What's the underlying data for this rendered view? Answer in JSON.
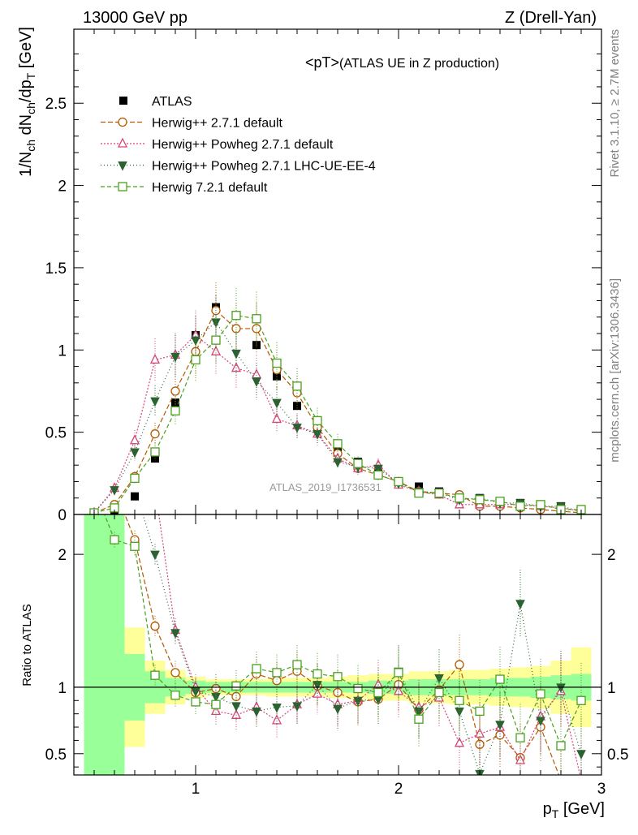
{
  "header": {
    "left": "13000 GeV pp",
    "right": "Z (Drell-Yan)"
  },
  "side_text": {
    "rivet": "Rivet 3.1.10, ≥ 2.7M events",
    "mcplots": "mcplots.cern.ch [arXiv:1306.3436]"
  },
  "chart_data": {
    "type": "scatter",
    "title_main": "<pT>",
    "title_sub": " (ATLAS UE in Z production)",
    "watermark": "ATLAS_2019_I1736531",
    "ylabel_main": "1/N_ch dN_ch/dp_T [GeV]",
    "ylabel_ratio": "Ratio to ATLAS",
    "xlabel": "p_T [GeV]",
    "xlim": [
      0.4,
      3.0
    ],
    "ylim_main": [
      0,
      2.95
    ],
    "ylim_ratio": [
      0.34,
      2.3
    ],
    "x_ticks": [
      "1",
      "2",
      "3"
    ],
    "y_ticks_main": [
      "0",
      "0.5",
      "1",
      "1.5",
      "2",
      "2.5"
    ],
    "y_ticks_ratio": [
      "0.5",
      "1",
      "2"
    ],
    "legend_position": "top-left",
    "x": [
      0.5,
      0.6,
      0.7,
      0.8,
      0.9,
      1.0,
      1.1,
      1.2,
      1.3,
      1.4,
      1.5,
      1.6,
      1.7,
      1.8,
      1.9,
      2.0,
      2.1,
      2.2,
      2.3,
      2.4,
      2.5,
      2.6,
      2.7,
      2.8,
      2.9
    ],
    "band_edges": [
      0.45,
      0.55,
      0.65,
      0.75,
      0.85,
      0.95,
      1.05,
      1.15,
      1.25,
      1.35,
      1.45,
      1.55,
      1.65,
      1.75,
      1.85,
      1.95,
      2.05,
      2.15,
      2.25,
      2.35,
      2.45,
      2.55,
      2.65,
      2.75,
      2.85,
      2.95
    ],
    "band_green": [
      [
        0.3,
        2.5
      ],
      [
        0.3,
        2.5
      ],
      [
        0.75,
        1.25
      ],
      [
        0.88,
        1.12
      ],
      [
        0.93,
        1.07
      ],
      [
        0.95,
        1.05
      ],
      [
        0.96,
        1.04
      ],
      [
        0.96,
        1.04
      ],
      [
        0.96,
        1.04
      ],
      [
        0.96,
        1.04
      ],
      [
        0.96,
        1.04
      ],
      [
        0.96,
        1.04
      ],
      [
        0.96,
        1.04
      ],
      [
        0.96,
        1.04
      ],
      [
        0.95,
        1.05
      ],
      [
        0.95,
        1.05
      ],
      [
        0.94,
        1.06
      ],
      [
        0.94,
        1.06
      ],
      [
        0.94,
        1.06
      ],
      [
        0.94,
        1.06
      ],
      [
        0.93,
        1.07
      ],
      [
        0.93,
        1.07
      ],
      [
        0.92,
        1.08
      ],
      [
        0.91,
        1.09
      ],
      [
        0.9,
        1.1
      ]
    ],
    "band_yellow": [
      [
        0.3,
        2.5
      ],
      [
        0.3,
        2.5
      ],
      [
        0.55,
        1.45
      ],
      [
        0.8,
        1.2
      ],
      [
        0.87,
        1.13
      ],
      [
        0.92,
        1.08
      ],
      [
        0.94,
        1.06
      ],
      [
        0.94,
        1.06
      ],
      [
        0.94,
        1.06
      ],
      [
        0.93,
        1.07
      ],
      [
        0.93,
        1.07
      ],
      [
        0.93,
        1.07
      ],
      [
        0.92,
        1.08
      ],
      [
        0.91,
        1.09
      ],
      [
        0.9,
        1.1
      ],
      [
        0.9,
        1.1
      ],
      [
        0.88,
        1.12
      ],
      [
        0.88,
        1.12
      ],
      [
        0.87,
        1.13
      ],
      [
        0.87,
        1.13
      ],
      [
        0.86,
        1.14
      ],
      [
        0.85,
        1.15
      ],
      [
        0.84,
        1.16
      ],
      [
        0.8,
        1.2
      ],
      [
        0.7,
        1.3
      ]
    ],
    "series": [
      {
        "name": "ATLAS",
        "kind": "data",
        "color": "#000000",
        "values": [
          0.01,
          0.02,
          0.11,
          0.34,
          0.68,
          1.09,
          1.26,
          1.21,
          1.03,
          0.84,
          0.66,
          0.52,
          0.39,
          0.32,
          0.25,
          0.19,
          0.17,
          0.14,
          0.11,
          0.1,
          0.08,
          0.07,
          0.06,
          0.05,
          0.03
        ]
      },
      {
        "name": "Herwig++ 2.7.1 default",
        "kind": "mc",
        "color": "#b35a00",
        "marker": "circle",
        "dash": "6,3",
        "values": [
          0.01,
          0.06,
          0.23,
          0.49,
          0.75,
          0.99,
          1.24,
          1.13,
          1.13,
          0.88,
          0.74,
          0.53,
          0.37,
          0.28,
          0.24,
          0.2,
          0.14,
          0.13,
          0.12,
          0.05,
          0.05,
          0.04,
          0.03,
          0.02,
          0.01
        ],
        "ratio": [
          2.5,
          2.5,
          2.11,
          1.46,
          1.11,
          0.96,
          0.99,
          0.93,
          1.1,
          1.05,
          1.12,
          1.01,
          0.96,
          0.89,
          0.91,
          1.02,
          0.83,
          0.98,
          1.17,
          0.57,
          0.64,
          0.47,
          0.7,
          0.3,
          0.3
        ]
      },
      {
        "name": "Herwig++ Powheg 2.7.1 default",
        "kind": "mc",
        "color": "#d6457a",
        "marker": "triangle-up",
        "dash": "2,2",
        "values": [
          0.01,
          0.16,
          0.45,
          0.94,
          0.97,
          1.09,
          0.99,
          0.89,
          0.85,
          0.58,
          0.54,
          0.49,
          0.34,
          0.28,
          0.3,
          0.18,
          0.14,
          0.12,
          0.06,
          0.06,
          0.06,
          0.06,
          0.05,
          0.04,
          0.02
        ],
        "ratio": [
          2.5,
          2.5,
          2.5,
          2.5,
          1.43,
          1.0,
          0.82,
          0.79,
          0.85,
          0.75,
          0.87,
          0.95,
          0.87,
          0.9,
          1.02,
          0.97,
          0.85,
          0.92,
          0.58,
          0.65,
          0.7,
          0.45,
          0.78,
          0.97,
          0.3
        ]
      },
      {
        "name": "Herwig++ Powheg 2.7.1 LHC-UE-EE-4",
        "kind": "mc",
        "color": "#2a6331",
        "marker": "triangle-down",
        "dash": "1,3",
        "values": [
          0.01,
          0.15,
          0.38,
          0.69,
          0.96,
          1.06,
          1.17,
          0.98,
          0.81,
          0.68,
          0.53,
          0.49,
          0.32,
          0.29,
          0.28,
          0.19,
          0.14,
          0.13,
          0.09,
          0.1,
          0.07,
          0.07,
          0.05,
          0.05,
          0.02
        ],
        "ratio": [
          2.5,
          2.5,
          2.5,
          2.0,
          1.41,
          0.97,
          0.93,
          0.86,
          0.82,
          0.85,
          0.86,
          1.02,
          0.84,
          0.9,
          0.91,
          1.12,
          0.82,
          1.07,
          0.82,
          0.35,
          0.72,
          1.63,
          0.75,
          1.0,
          0.5
        ]
      },
      {
        "name": "Herwig 7.2.1 default",
        "kind": "mc",
        "color": "#4aa01f",
        "marker": "square",
        "dash": "5,3",
        "values": [
          0.01,
          0.04,
          0.22,
          0.38,
          0.63,
          0.94,
          1.06,
          1.21,
          1.19,
          0.92,
          0.78,
          0.57,
          0.43,
          0.31,
          0.24,
          0.2,
          0.13,
          0.13,
          0.1,
          0.09,
          0.08,
          0.05,
          0.06,
          0.03,
          0.03
        ],
        "ratio": [
          2.5,
          2.11,
          2.06,
          1.09,
          0.94,
          0.89,
          0.87,
          1.01,
          1.14,
          1.11,
          1.17,
          1.1,
          1.08,
          0.99,
          0.96,
          1.11,
          0.76,
          0.96,
          0.9,
          0.82,
          1.06,
          0.62,
          0.95,
          0.56,
          0.9
        ]
      }
    ]
  }
}
